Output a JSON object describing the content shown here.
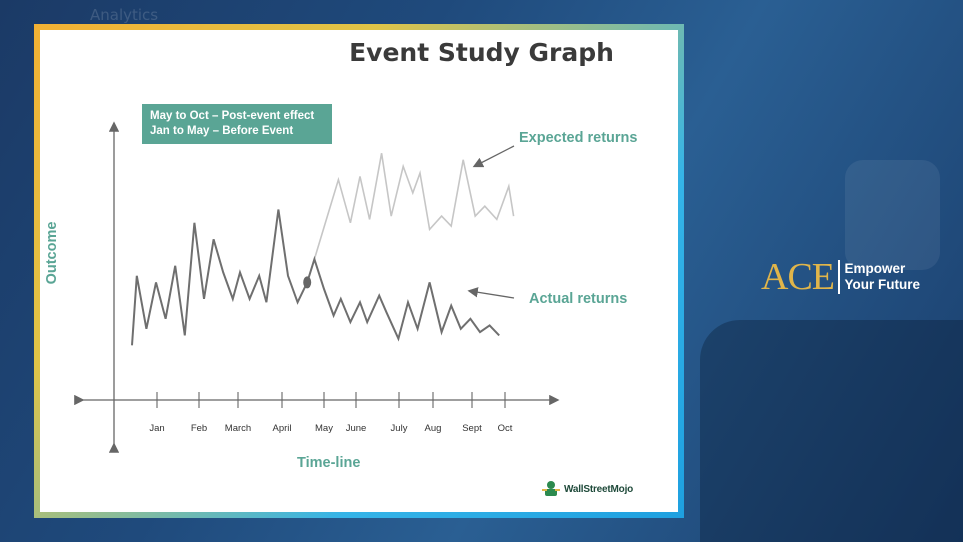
{
  "background": {
    "faint_text": "Analytics",
    "brand_color": "#e0b54a",
    "accent": "#5aa595"
  },
  "note": {
    "line1": "May to Oct – Post-event effect",
    "line2": "Jan to May – Before Event"
  },
  "brand": {
    "logo_text": "WallStreetMojo",
    "ace": "ACE",
    "tag1": "Empower",
    "tag2": "Your Future"
  },
  "chart_data": {
    "type": "line",
    "title": "Event Study Graph",
    "xlabel": "Time-line",
    "ylabel": "Outcome",
    "categories": [
      "Jan",
      "Feb",
      "March",
      "April",
      "May",
      "June",
      "July",
      "Aug",
      "Sept",
      "Oct"
    ],
    "annotations": {
      "expected": "Expected returns",
      "actual": "Actual returns"
    },
    "event_marker": {
      "x": 7.8,
      "y": 3.4
    },
    "series": [
      {
        "name": "Actual returns",
        "color": "#6f6f6f",
        "points": [
          [
            0.5,
            1.5
          ],
          [
            0.7,
            3.6
          ],
          [
            1.1,
            2.0
          ],
          [
            1.5,
            3.4
          ],
          [
            1.9,
            2.3
          ],
          [
            2.3,
            3.9
          ],
          [
            2.7,
            1.8
          ],
          [
            3.1,
            5.2
          ],
          [
            3.5,
            2.9
          ],
          [
            3.9,
            4.7
          ],
          [
            4.3,
            3.7
          ],
          [
            4.7,
            2.9
          ],
          [
            5.0,
            3.7
          ],
          [
            5.4,
            2.9
          ],
          [
            5.8,
            3.6
          ],
          [
            6.1,
            2.8
          ],
          [
            6.6,
            5.6
          ],
          [
            7.0,
            3.6
          ],
          [
            7.4,
            2.8
          ],
          [
            7.8,
            3.4
          ],
          [
            8.1,
            4.1
          ],
          [
            8.5,
            3.2
          ],
          [
            8.9,
            2.4
          ],
          [
            9.2,
            2.9
          ],
          [
            9.6,
            2.2
          ],
          [
            10.0,
            2.8
          ],
          [
            10.3,
            2.2
          ],
          [
            10.8,
            3.0
          ],
          [
            11.1,
            2.5
          ],
          [
            11.6,
            1.7
          ],
          [
            12.0,
            2.8
          ],
          [
            12.4,
            2.0
          ],
          [
            12.9,
            3.4
          ],
          [
            13.4,
            1.9
          ],
          [
            13.8,
            2.7
          ],
          [
            14.2,
            2.0
          ],
          [
            14.6,
            2.3
          ],
          [
            15.0,
            1.9
          ],
          [
            15.4,
            2.1
          ],
          [
            15.8,
            1.8
          ]
        ]
      },
      {
        "name": "Expected returns",
        "color": "#c6c6c6",
        "points": [
          [
            8.1,
            4.1
          ],
          [
            8.6,
            5.3
          ],
          [
            9.1,
            6.5
          ],
          [
            9.6,
            5.2
          ],
          [
            10.0,
            6.6
          ],
          [
            10.4,
            5.3
          ],
          [
            10.9,
            7.3
          ],
          [
            11.3,
            5.4
          ],
          [
            11.8,
            6.9
          ],
          [
            12.2,
            6.1
          ],
          [
            12.5,
            6.7
          ],
          [
            12.9,
            5.0
          ],
          [
            13.4,
            5.4
          ],
          [
            13.8,
            5.1
          ],
          [
            14.3,
            7.1
          ],
          [
            14.8,
            5.4
          ],
          [
            15.2,
            5.7
          ],
          [
            15.7,
            5.3
          ],
          [
            16.2,
            6.3
          ],
          [
            16.4,
            5.4
          ]
        ]
      }
    ],
    "xlim": [
      0,
      17
    ],
    "ylim": [
      0,
      8
    ],
    "grid": false,
    "legend": "none"
  }
}
